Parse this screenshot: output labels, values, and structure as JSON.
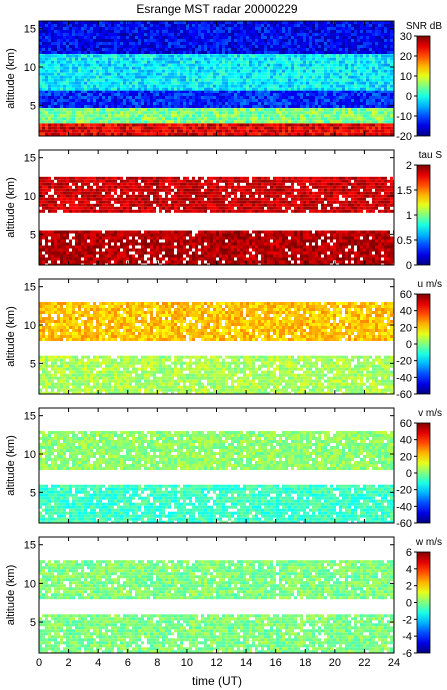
{
  "chart_data": {
    "title": "Esrange MST radar 20000229",
    "xlabel": "time (UT)",
    "x_ticks": [
      0,
      2,
      4,
      6,
      8,
      10,
      12,
      14,
      16,
      18,
      20,
      22,
      24
    ],
    "xlim": [
      0,
      24
    ],
    "panels": [
      {
        "type": "heatmap",
        "ylabel": "altitude (km)",
        "ylim": [
          1,
          16
        ],
        "y_ticks": [
          5,
          10,
          15
        ],
        "colorbar_label": "SNR dB",
        "clim": [
          -20,
          30
        ],
        "colorbar_ticks": [
          -20,
          -10,
          0,
          10,
          20,
          30
        ],
        "bands": [
          {
            "alt_min": 1.0,
            "alt_max": 3.0,
            "value": 25
          },
          {
            "alt_min": 3.0,
            "alt_max": 5.0,
            "value": 5
          },
          {
            "alt_min": 5.0,
            "alt_max": 7.0,
            "value": -12
          },
          {
            "alt_min": 7.0,
            "alt_max": 12.0,
            "value": -2
          },
          {
            "alt_min": 12.0,
            "alt_max": 16.0,
            "value": -14
          }
        ]
      },
      {
        "type": "heatmap",
        "ylabel": "altitude (km)",
        "ylim": [
          1,
          16
        ],
        "y_ticks": [
          5,
          10,
          15
        ],
        "colorbar_label": "tau S",
        "clim": [
          0,
          2
        ],
        "colorbar_ticks": [
          0,
          0.5,
          1,
          1.5,
          2
        ],
        "bands": [
          {
            "alt_min": 1.0,
            "alt_max": 5.5,
            "value": 1.9
          },
          {
            "alt_min": 8.0,
            "alt_max": 12.5,
            "value": 1.85
          }
        ]
      },
      {
        "type": "heatmap",
        "ylabel": "altitude (km)",
        "ylim": [
          1,
          16
        ],
        "y_ticks": [
          5,
          10,
          15
        ],
        "colorbar_label": "u m/s",
        "clim": [
          -60,
          60
        ],
        "colorbar_ticks": [
          -60,
          -40,
          -20,
          0,
          20,
          40,
          60
        ],
        "bands": [
          {
            "alt_min": 1.0,
            "alt_max": 6.0,
            "value": 5
          },
          {
            "alt_min": 8.0,
            "alt_max": 13.0,
            "value": 22
          }
        ]
      },
      {
        "type": "heatmap",
        "ylabel": "altitude (km)",
        "ylim": [
          1,
          16
        ],
        "y_ticks": [
          5,
          10,
          15
        ],
        "colorbar_label": "v m/s",
        "clim": [
          -60,
          60
        ],
        "colorbar_ticks": [
          -60,
          -40,
          -20,
          0,
          20,
          40,
          60
        ],
        "bands": [
          {
            "alt_min": 1.0,
            "alt_max": 6.0,
            "value": -8
          },
          {
            "alt_min": 8.0,
            "alt_max": 13.0,
            "value": 2
          }
        ]
      },
      {
        "type": "heatmap",
        "ylabel": "altitude (km)",
        "ylim": [
          1,
          16
        ],
        "y_ticks": [
          5,
          10,
          15
        ],
        "colorbar_label": "w m/s",
        "clim": [
          -6,
          6
        ],
        "colorbar_ticks": [
          -6,
          -4,
          -2,
          0,
          2,
          4,
          6
        ],
        "bands": [
          {
            "alt_min": 1.0,
            "alt_max": 6.0,
            "value": 0
          },
          {
            "alt_min": 8.0,
            "alt_max": 13.0,
            "value": 0
          }
        ]
      }
    ]
  }
}
